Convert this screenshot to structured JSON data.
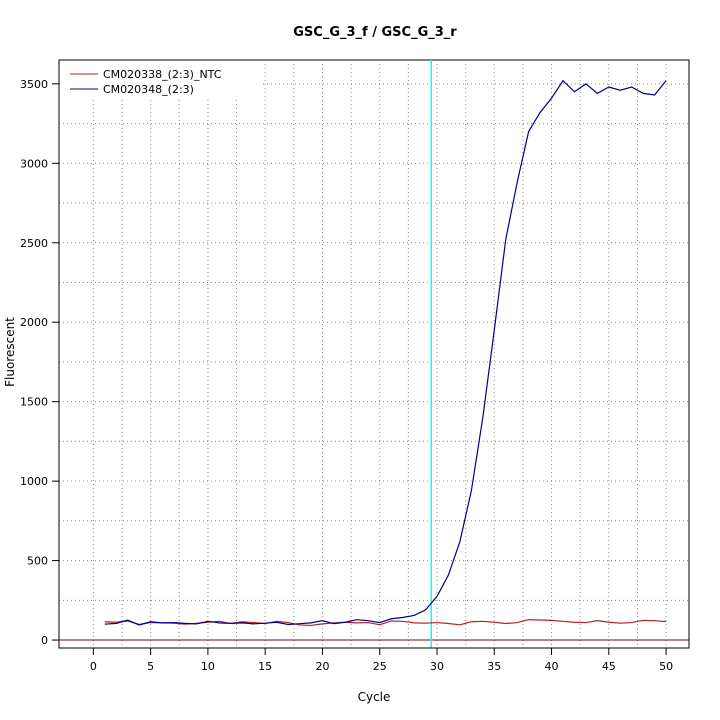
{
  "chart_data": {
    "type": "line",
    "title": "GSC_G_3_f / GSC_G_3_r",
    "xlabel": "Cycle",
    "ylabel": "Fluorescent",
    "xlim": [
      -3,
      52
    ],
    "ylim": [
      -50,
      3650
    ],
    "x_ticks": [
      0,
      5,
      10,
      15,
      20,
      25,
      30,
      35,
      40,
      45,
      50
    ],
    "y_ticks": [
      0,
      500,
      1000,
      1500,
      2000,
      2500,
      3000,
      3500
    ],
    "grid": true,
    "legend_position": "top-left",
    "threshold_cycle": 29.5,
    "threshold_color": "#00ffff",
    "baseline_color": "#8b0000",
    "x": [
      1,
      2,
      3,
      4,
      5,
      6,
      7,
      8,
      9,
      10,
      11,
      12,
      13,
      14,
      15,
      16,
      17,
      18,
      19,
      20,
      21,
      22,
      23,
      24,
      25,
      26,
      27,
      28,
      29,
      30,
      31,
      32,
      33,
      34,
      35,
      36,
      37,
      38,
      39,
      40,
      41,
      42,
      43,
      44,
      45,
      46,
      47,
      48,
      49,
      50
    ],
    "series": [
      {
        "name": "CM020338_(2:3)_NTC",
        "color": "#b22222",
        "values": [
          115,
          112,
          120,
          98,
          110,
          108,
          106,
          100,
          105,
          112,
          118,
          104,
          115,
          110,
          104,
          118,
          110,
          95,
          92,
          102,
          108,
          112,
          108,
          110,
          96,
          120,
          118,
          108,
          106,
          110,
          104,
          96,
          115,
          118,
          112,
          104,
          110,
          128,
          126,
          124,
          118,
          112,
          110,
          122,
          112,
          106,
          110,
          124,
          122,
          116
        ]
      },
      {
        "name": "CM020348_(2:3)",
        "color": "#00008b",
        "values": [
          100,
          105,
          125,
          95,
          115,
          108,
          110,
          105,
          102,
          118,
          108,
          105,
          108,
          102,
          106,
          112,
          98,
          103,
          108,
          122,
          103,
          112,
          128,
          122,
          110,
          134,
          142,
          155,
          190,
          275,
          410,
          620,
          940,
          1400,
          1950,
          2520,
          2880,
          3200,
          3320,
          3410,
          3520,
          3450,
          3500,
          3440,
          3480,
          3460,
          3480,
          3440,
          3430,
          3520
        ]
      }
    ]
  }
}
